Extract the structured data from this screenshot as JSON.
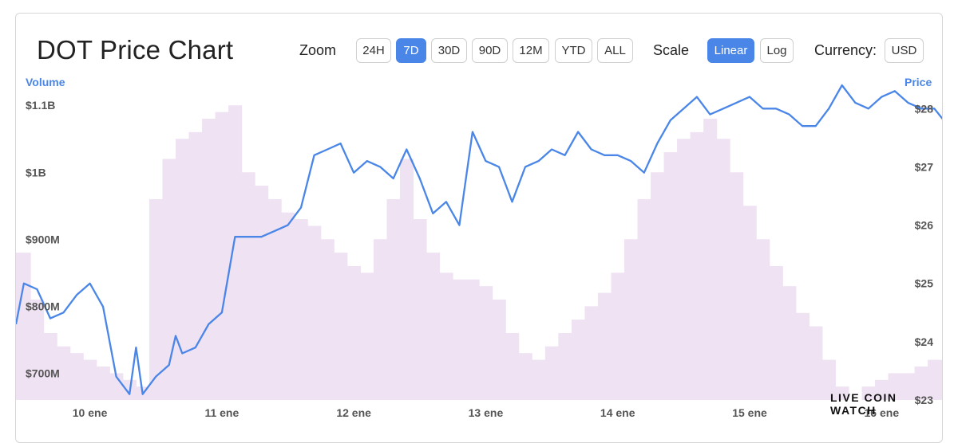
{
  "header": {
    "title": "DOT Price Chart",
    "zoom_label": "Zoom",
    "zoom_options": [
      "24H",
      "7D",
      "30D",
      "90D",
      "12M",
      "YTD",
      "ALL"
    ],
    "zoom_selected": "7D",
    "scale_label": "Scale",
    "scale_options": [
      "Linear",
      "Log"
    ],
    "scale_selected": "Linear",
    "currency_label": "Currency:",
    "currency_value": "USD"
  },
  "brand": {
    "text": "LIVE COIN WATCH"
  },
  "colors": {
    "accent": "#4a86e8",
    "volume_fill": "#efe2f3",
    "line": "#4a86e8"
  },
  "chart_data": {
    "type": "line",
    "left_axis_title": "Volume",
    "right_axis_title": "Price",
    "volume_ticks": [
      "$1.1B",
      "$1B",
      "$900M",
      "$800M",
      "$700M"
    ],
    "volume_tick_values": [
      1100,
      1000,
      900,
      800,
      700
    ],
    "price_ticks": [
      "$28",
      "$27",
      "$26",
      "$25",
      "$24",
      "$23"
    ],
    "price_tick_values": [
      28,
      27,
      26,
      25,
      24,
      23
    ],
    "x_ticks": [
      "10 ene",
      "11 ene",
      "12 ene",
      "13 ene",
      "14 ene",
      "15 ene",
      "16 ene"
    ],
    "x_tick_values": [
      1,
      2,
      3,
      4,
      5,
      6,
      7
    ],
    "x_range": [
      0.44,
      7.47
    ],
    "volume_range": [
      660,
      1130
    ],
    "price_range": [
      23,
      28.4
    ],
    "series": [
      {
        "name": "Price",
        "axis": "right",
        "x": [
          0.44,
          0.5,
          0.6,
          0.7,
          0.8,
          0.9,
          1.0,
          1.1,
          1.2,
          1.3,
          1.35,
          1.4,
          1.5,
          1.6,
          1.65,
          1.7,
          1.8,
          1.9,
          2.0,
          2.1,
          2.2,
          2.3,
          2.4,
          2.5,
          2.6,
          2.7,
          2.8,
          2.9,
          3.0,
          3.1,
          3.2,
          3.3,
          3.4,
          3.5,
          3.6,
          3.7,
          3.8,
          3.9,
          4.0,
          4.1,
          4.2,
          4.3,
          4.4,
          4.5,
          4.6,
          4.7,
          4.8,
          4.9,
          5.0,
          5.1,
          5.2,
          5.3,
          5.4,
          5.5,
          5.6,
          5.7,
          5.8,
          5.9,
          6.0,
          6.1,
          6.2,
          6.3,
          6.4,
          6.5,
          6.6,
          6.7,
          6.8,
          6.9,
          7.0,
          7.1,
          7.2,
          7.3,
          7.4,
          7.47
        ],
        "values": [
          24.3,
          25.0,
          24.9,
          24.4,
          24.5,
          24.8,
          25.0,
          24.6,
          23.4,
          23.1,
          23.9,
          23.1,
          23.4,
          23.6,
          24.1,
          23.8,
          23.9,
          24.3,
          24.5,
          25.8,
          25.8,
          25.8,
          25.9,
          26.0,
          26.3,
          27.2,
          27.3,
          27.4,
          26.9,
          27.1,
          27.0,
          26.8,
          27.3,
          26.8,
          26.2,
          26.4,
          26.0,
          27.6,
          27.1,
          27.0,
          26.4,
          27.0,
          27.1,
          27.3,
          27.2,
          27.6,
          27.3,
          27.2,
          27.2,
          27.1,
          26.9,
          27.4,
          27.8,
          28.0,
          28.2,
          27.9,
          28.0,
          28.1,
          28.2,
          28.0,
          28.0,
          27.9,
          27.7,
          27.7,
          28.0,
          28.4,
          28.1,
          28.0,
          28.2,
          28.3,
          28.1,
          28.0,
          28.0,
          27.8
        ]
      },
      {
        "name": "Volume",
        "axis": "left",
        "x": [
          0.44,
          0.55,
          0.65,
          0.75,
          0.85,
          0.95,
          1.05,
          1.15,
          1.25,
          1.35,
          1.45,
          1.55,
          1.65,
          1.75,
          1.85,
          1.95,
          2.05,
          2.15,
          2.25,
          2.35,
          2.45,
          2.55,
          2.65,
          2.75,
          2.85,
          2.95,
          3.05,
          3.15,
          3.25,
          3.35,
          3.45,
          3.55,
          3.65,
          3.75,
          3.85,
          3.95,
          4.05,
          4.15,
          4.25,
          4.35,
          4.45,
          4.55,
          4.65,
          4.75,
          4.85,
          4.95,
          5.05,
          5.15,
          5.25,
          5.35,
          5.45,
          5.55,
          5.65,
          5.75,
          5.85,
          5.95,
          6.05,
          6.15,
          6.25,
          6.35,
          6.45,
          6.55,
          6.65,
          6.75,
          6.85,
          6.95,
          7.05,
          7.15,
          7.25,
          7.35,
          7.47
        ],
        "values": [
          880,
          810,
          760,
          740,
          730,
          720,
          710,
          700,
          690,
          680,
          960,
          1020,
          1050,
          1060,
          1080,
          1090,
          1100,
          1000,
          980,
          960,
          940,
          930,
          920,
          900,
          880,
          860,
          850,
          900,
          960,
          1020,
          930,
          880,
          850,
          840,
          840,
          830,
          810,
          760,
          730,
          720,
          740,
          760,
          780,
          800,
          820,
          850,
          900,
          960,
          1000,
          1030,
          1050,
          1060,
          1080,
          1050,
          1000,
          950,
          900,
          860,
          830,
          790,
          770,
          720,
          680,
          660,
          680,
          690,
          700,
          700,
          710,
          720,
          740
        ]
      }
    ],
    "grid": false,
    "legend": "none"
  }
}
